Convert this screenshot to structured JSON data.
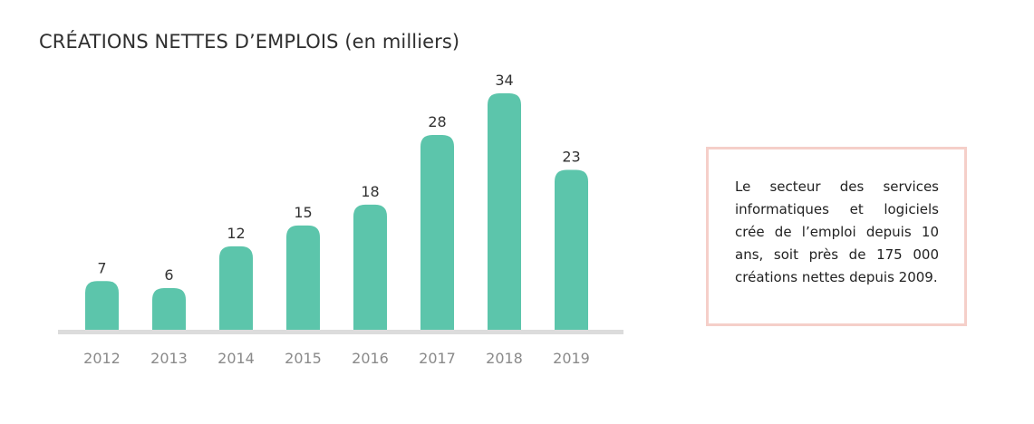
{
  "chart_data": {
    "type": "bar",
    "title": "CRÉATIONS NETTES D’EMPLOIS (en milliers)",
    "categories": [
      "2012",
      "2013",
      "2014",
      "2015",
      "2016",
      "2017",
      "2018",
      "2019"
    ],
    "values": [
      7,
      6,
      12,
      15,
      18,
      28,
      34,
      23
    ],
    "value_labels": [
      "7",
      "6",
      "12",
      "15",
      "18",
      "28",
      "34",
      "23"
    ],
    "xlabel": "",
    "ylabel": "",
    "ylim": [
      0,
      34
    ],
    "grid": false,
    "legend": "none",
    "bar_color": "#5cc5ab",
    "baseline_color": "#dcdcdc"
  },
  "note": {
    "text": "Le secteur des services informatiques et logiciels crée de l’emploi depuis 10 ans, soit près de 175 000 créations nettes depuis 2009.",
    "border_color": "#f5cfc9"
  }
}
